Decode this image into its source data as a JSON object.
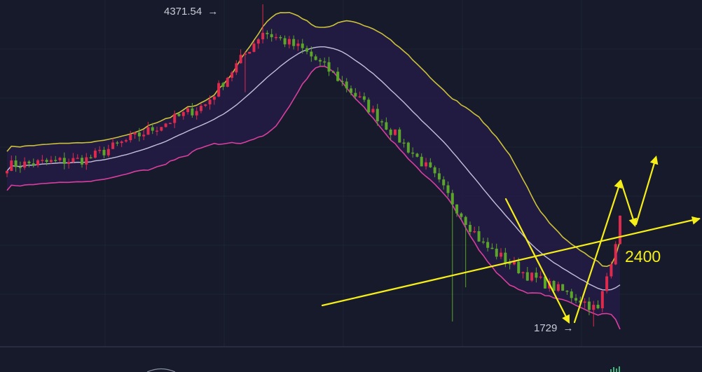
{
  "chart_data": {
    "type": "candlestick",
    "series": [
      {
        "name": "",
        "role": "bollinger-upper",
        "color": "#ccc13a"
      },
      {
        "name": "",
        "role": "bollinger-middle",
        "color": "#c3bfdc"
      },
      {
        "name": "",
        "role": "bollinger-lower",
        "color": "#d83f9e"
      }
    ],
    "annotations": [
      {
        "text": "4371.54",
        "arrow": "→",
        "kind": "high-marker",
        "value": 4371.54
      },
      {
        "text": "1729",
        "arrow": "→",
        "kind": "low-marker",
        "value": 1729
      },
      {
        "text": "2400",
        "kind": "level-label",
        "value": 2400
      }
    ],
    "colors": {
      "up": "#dd2a4d",
      "down": "#5aa52a",
      "band_fill": "#241c45",
      "drawing": "#f5ee19",
      "background": "#161a2b",
      "grid": "#1f2436"
    },
    "ylim": [
      1600,
      4500
    ],
    "grid": true
  }
}
